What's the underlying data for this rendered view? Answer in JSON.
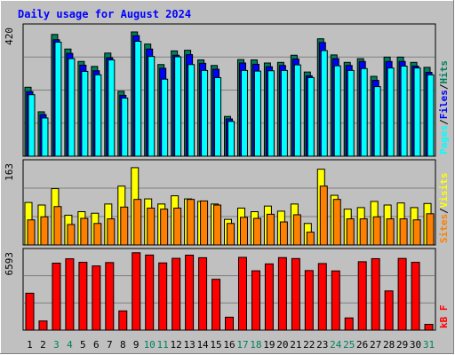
{
  "title": "Daily usage for August 2024",
  "colors": {
    "background": "#c0c0c0",
    "title": "#0000ff",
    "hits": "#00805c",
    "files": "#0000ff",
    "pages": "#00ffff",
    "visits": "#ffff00",
    "sites": "#ff8000",
    "kbytes": "#ff0000",
    "weekend_label": "#00805c",
    "weekday_label": "#000000"
  },
  "chart_data": [
    {
      "type": "bar",
      "name": "hits-files-pages",
      "ymax_label": "420",
      "ylim": [
        0,
        420
      ],
      "legend": [
        "Pages",
        "Files",
        "Hits"
      ],
      "categories": [
        "1",
        "2",
        "3",
        "4",
        "5",
        "6",
        "7",
        "8",
        "9",
        "10",
        "11",
        "12",
        "13",
        "14",
        "15",
        "16",
        "17",
        "18",
        "19",
        "20",
        "21",
        "22",
        "23",
        "24",
        "25",
        "26",
        "27",
        "28",
        "29",
        "30",
        "31"
      ],
      "weekend_days": [
        "3",
        "4",
        "10",
        "11",
        "17",
        "18",
        "24",
        "25",
        "31"
      ],
      "series": [
        {
          "name": "Hits",
          "values": [
            222,
            143,
            392,
            345,
            305,
            289,
            332,
            209,
            400,
            361,
            295,
            339,
            341,
            310,
            292,
            128,
            311,
            310,
            300,
            302,
            325,
            271,
            378,
            326,
            302,
            314,
            257,
            319,
            319,
            302,
            286
          ]
        },
        {
          "name": "Files",
          "values": [
            208,
            134,
            375,
            331,
            293,
            275,
            317,
            196,
            388,
            345,
            283,
            325,
            327,
            299,
            280,
            120,
            300,
            296,
            288,
            292,
            313,
            259,
            366,
            314,
            292,
            305,
            244,
            305,
            305,
            290,
            270
          ]
        },
        {
          "name": "Pages",
          "values": [
            198,
            123,
            367,
            314,
            273,
            262,
            310,
            187,
            370,
            321,
            248,
            320,
            295,
            276,
            253,
            112,
            276,
            274,
            275,
            276,
            294,
            253,
            340,
            291,
            276,
            282,
            224,
            284,
            290,
            284,
            262
          ]
        }
      ]
    },
    {
      "type": "bar",
      "name": "visits-sites",
      "ymax_label": "163",
      "ylim": [
        0,
        163
      ],
      "legend": [
        "Sites",
        "Visits"
      ],
      "categories": [
        "1",
        "2",
        "3",
        "4",
        "5",
        "6",
        "7",
        "8",
        "9",
        "10",
        "11",
        "12",
        "13",
        "14",
        "15",
        "16",
        "17",
        "18",
        "19",
        "20",
        "21",
        "22",
        "23",
        "24",
        "25",
        "26",
        "27",
        "28",
        "29",
        "30",
        "31"
      ],
      "series": [
        {
          "name": "Visits",
          "values": [
            83,
            78,
            110,
            58,
            65,
            62,
            80,
            115,
            151,
            90,
            80,
            96,
            90,
            85,
            80,
            50,
            72,
            65,
            76,
            66,
            80,
            42,
            148,
            97,
            70,
            73,
            85,
            78,
            82,
            73,
            81
          ]
        },
        {
          "name": "Sites",
          "values": [
            49,
            55,
            75,
            40,
            52,
            42,
            51,
            74,
            89,
            72,
            70,
            72,
            89,
            86,
            78,
            42,
            54,
            52,
            60,
            45,
            59,
            25,
            115,
            89,
            51,
            51,
            55,
            51,
            51,
            49,
            61
          ]
        }
      ]
    },
    {
      "type": "bar",
      "name": "kbytes",
      "ymax_label": "6593",
      "ylim": [
        0,
        6593
      ],
      "legend": [
        "kB F"
      ],
      "categories": [
        "1",
        "2",
        "3",
        "4",
        "5",
        "6",
        "7",
        "8",
        "9",
        "10",
        "11",
        "12",
        "13",
        "14",
        "15",
        "16",
        "17",
        "18",
        "19",
        "20",
        "21",
        "22",
        "23",
        "24",
        "25",
        "26",
        "27",
        "28",
        "29",
        "30",
        "31"
      ],
      "series": [
        {
          "name": "kB F",
          "values": [
            3050,
            760,
            5530,
            5890,
            5600,
            5300,
            5580,
            1590,
            6390,
            6200,
            5550,
            5930,
            6190,
            5980,
            4200,
            1070,
            6010,
            4900,
            5470,
            5990,
            5910,
            4920,
            5500,
            4890,
            1010,
            5650,
            5900,
            3240,
            5920,
            5600,
            480
          ]
        }
      ]
    }
  ]
}
